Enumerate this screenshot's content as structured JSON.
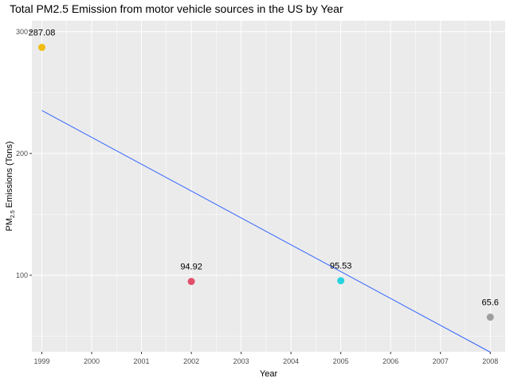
{
  "chart_data": {
    "type": "scatter",
    "title": "Total PM2.5 Emission from motor vehicle sources in the US by Year",
    "xlabel": "Year",
    "ylabel_main": "PM",
    "ylabel_sub": "2.5",
    "ylabel_rest": " Emissions (Tons)",
    "x_ticks": [
      1999,
      2000,
      2001,
      2002,
      2003,
      2004,
      2005,
      2006,
      2007,
      2008
    ],
    "y_ticks": [
      100,
      200,
      300
    ],
    "xlim": [
      1998.8,
      2008.3
    ],
    "ylim": [
      37.2,
      309.0
    ],
    "points": [
      {
        "x": 1999,
        "y": 287.08,
        "label": "287.08",
        "color": "#f0bc0f"
      },
      {
        "x": 2002,
        "y": 94.92,
        "label": "94.92",
        "color": "#e0506b"
      },
      {
        "x": 2005,
        "y": 95.53,
        "label": "95.53",
        "color": "#27d3e0"
      },
      {
        "x": 2008,
        "y": 65.6,
        "label": "65.6",
        "color": "#9e9e9e"
      }
    ],
    "trend_line": {
      "x": [
        1999,
        2008
      ],
      "y": [
        235.3,
        36.9
      ],
      "color": "#3366ff"
    },
    "grid": true,
    "legend": "none",
    "panel_color": "#ebebeb",
    "grid_color": "#ffffff"
  }
}
